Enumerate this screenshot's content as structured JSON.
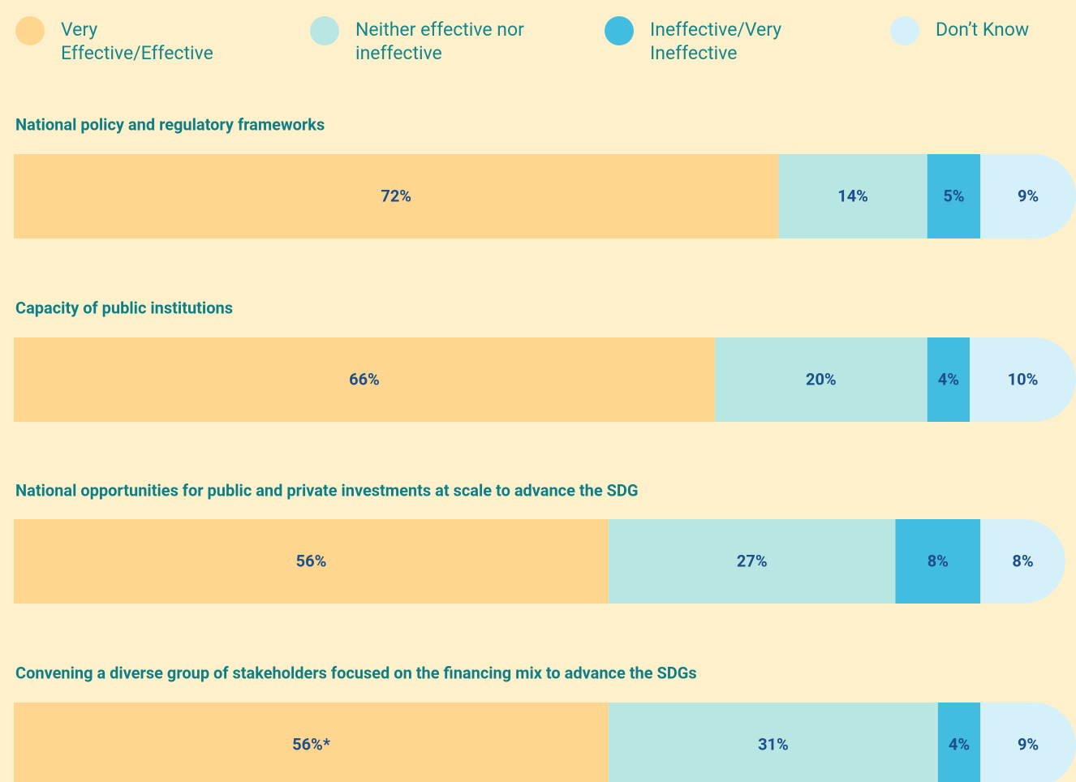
{
  "chart_data": {
    "type": "stacked-bar-horizontal",
    "categories": [
      "National policy and regulatory frameworks",
      "Capacity of public institutions",
      "National opportunities for public and private investments at scale to advance the SDG",
      "Convening a diverse group of stakeholders focused on the financing mix to advance the SDGs"
    ],
    "xlim": [
      0,
      100
    ],
    "series": [
      {
        "name": "Very Effective/Effective",
        "color": "#ffd68f",
        "values": [
          72,
          66,
          56,
          56
        ],
        "value_labels": [
          "72%",
          "66%",
          "56%",
          "56%*"
        ]
      },
      {
        "name": "Neither effective nor ineffective",
        "color": "#b8e6e3",
        "values": [
          14,
          20,
          27,
          31
        ],
        "value_labels": [
          "14%",
          "20%",
          "27%",
          "31%"
        ]
      },
      {
        "name": "Ineffective/Very Ineffective",
        "color": "#42bde0",
        "values": [
          5,
          4,
          8,
          4
        ],
        "value_labels": [
          "5%",
          "4%",
          "8%",
          "4%"
        ]
      },
      {
        "name": "Don’t Know",
        "color": "#d5f0f8",
        "values": [
          9,
          10,
          8,
          9
        ],
        "value_labels": [
          "9%",
          "10%",
          "8%",
          "9%"
        ]
      }
    ]
  }
}
